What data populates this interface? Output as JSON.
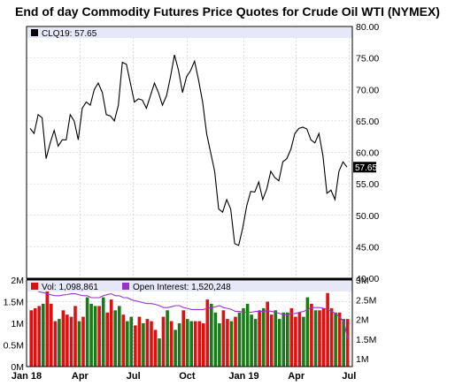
{
  "title": "End of day Commodity Futures Price Quotes for Crude Oil WTI (NYMEX)",
  "colors": {
    "price_line": "#000000",
    "vol_up": "#1a7a1a",
    "vol_down": "#e01010",
    "open_interest": "#9933cc",
    "legend_bar": "#e6e8f8",
    "grid": "#c8c8c8"
  },
  "price_legend": {
    "label": "CLQ19: 57.65"
  },
  "volume_legend": {
    "vol_label": "Vol: 1,098,861",
    "oi_label": "Open Interest: 1,520,248"
  },
  "chart_data": [
    {
      "type": "line",
      "series": [
        {
          "name": "CLQ19",
          "values": [
            63.8,
            63.0,
            66.0,
            65.5,
            59.0,
            61.5,
            63.5,
            61.0,
            62.0,
            62.0,
            66.0,
            65.0,
            62.0,
            67.0,
            68.0,
            67.5,
            70.0,
            71.0,
            69.5,
            66.0,
            65.8,
            65.0,
            67.5,
            74.3,
            74.0,
            71.0,
            68.0,
            68.5,
            68.3,
            67.0,
            69.0,
            71.0,
            69.5,
            67.5,
            69.0,
            72.0,
            75.5,
            73.0,
            69.5,
            72.0,
            73.0,
            74.5,
            71.5,
            68.0,
            63.0,
            60.0,
            57.0,
            51.0,
            50.5,
            52.5,
            51.0,
            45.5,
            45.2,
            48.0,
            51.5,
            53.8,
            53.7,
            55.3,
            52.5,
            54.2,
            57.0,
            56.0,
            55.5,
            58.5,
            59.0,
            60.5,
            63.0,
            63.8,
            64.0,
            63.7,
            62.0,
            61.5,
            63.0,
            59.5,
            53.5,
            54.0,
            52.5,
            57.0,
            58.5,
            57.65
          ]
        }
      ],
      "last_value_label": "57.65",
      "y_ticks": [
        "80.00",
        "75.00",
        "70.00",
        "65.00",
        "60.00",
        "55.00",
        "50.00",
        "45.00",
        "40.00"
      ],
      "ylim": [
        40,
        80
      ]
    },
    {
      "type": "bar",
      "series": [
        {
          "name": "Vol",
          "values": [
            1.3,
            1.35,
            1.4,
            1.45,
            1.75,
            1.45,
            1.05,
            1.1,
            1.3,
            1.2,
            1.15,
            1.4,
            1.05,
            1.15,
            1.6,
            1.45,
            1.4,
            1.4,
            1.6,
            1.25,
            1.55,
            1.3,
            1.4,
            1.2,
            1.05,
            1.15,
            0.95,
            1.15,
            1.0,
            1.1,
            1.05,
            0.85,
            0.65,
            1.15,
            1.3,
            1.05,
            0.85,
            1.0,
            1.3,
            1.1,
            1.05,
            1.05,
            1.05,
            1.0,
            1.55,
            1.45,
            1.25,
            1.0,
            1.3,
            1.1,
            1.05,
            1.15,
            1.25,
            1.35,
            1.45,
            1.2,
            1.1,
            1.3,
            1.35,
            1.5,
            1.2,
            1.3,
            1.1,
            1.25,
            1.25,
            1.35,
            1.15,
            1.25,
            1.15,
            1.6,
            1.45,
            1.3,
            1.3,
            1.35,
            1.7,
            1.35,
            1.25,
            1.25,
            1.1,
            1.1
          ]
        },
        {
          "name": "Open Interest",
          "values": [
            2.75,
            2.75,
            2.7,
            2.68,
            2.65,
            2.62,
            2.6,
            2.6,
            2.62,
            2.63,
            2.65,
            2.65,
            2.62,
            2.6,
            2.6,
            2.55,
            2.55,
            2.55,
            2.6,
            2.63,
            2.65,
            2.6,
            2.6,
            2.55,
            2.55,
            2.5,
            2.47,
            2.45,
            2.42,
            2.4,
            2.4,
            2.38,
            2.35,
            2.3,
            2.3,
            2.32,
            2.35,
            2.35,
            2.3,
            2.28,
            2.25,
            2.25,
            2.25,
            2.25,
            2.28,
            2.3,
            2.32,
            2.35,
            2.3,
            2.28,
            2.25,
            2.2,
            2.2,
            2.18,
            2.18,
            2.18,
            2.2,
            2.2,
            2.2,
            2.22,
            2.2,
            2.18,
            2.15,
            2.12,
            2.12,
            2.15,
            2.15,
            2.18,
            2.2,
            2.25,
            2.3,
            2.3,
            2.3,
            2.28,
            2.25,
            2.2,
            2.15,
            2.05,
            1.95,
            1.52
          ]
        }
      ],
      "up_flags": [
        0,
        0,
        0,
        1,
        0,
        0,
        0,
        1,
        0,
        0,
        0,
        0,
        1,
        0,
        1,
        1,
        1,
        0,
        1,
        0,
        0,
        1,
        1,
        0,
        1,
        1,
        0,
        0,
        1,
        0,
        0,
        0,
        1,
        0,
        1,
        0,
        1,
        1,
        0,
        1,
        1,
        0,
        0,
        0,
        0,
        1,
        1,
        1,
        0,
        0,
        1,
        0,
        1,
        1,
        1,
        1,
        1,
        0,
        1,
        0,
        0,
        1,
        1,
        1,
        1,
        0,
        0,
        0,
        1,
        1,
        0,
        1,
        0,
        0,
        0,
        0,
        1,
        0,
        1,
        0
      ],
      "left_ticks": [
        "2M",
        "1.5M",
        "1M",
        "0.5M",
        "0M"
      ],
      "left_lim": [
        0,
        2
      ],
      "right_ticks": [
        "3M",
        "2.5M",
        "2M",
        "1.5M",
        "1M"
      ],
      "right_lim": [
        0.8,
        3
      ],
      "x_ticks": [
        {
          "label": "Jan 18",
          "pos": 0.0
        },
        {
          "label": "Apr",
          "pos": 0.164
        },
        {
          "label": "Jul",
          "pos": 0.328
        },
        {
          "label": "Oct",
          "pos": 0.493
        },
        {
          "label": "Jan 19",
          "pos": 0.667
        },
        {
          "label": "Apr",
          "pos": 0.828
        },
        {
          "label": "Jul",
          "pos": 0.99
        }
      ]
    }
  ]
}
